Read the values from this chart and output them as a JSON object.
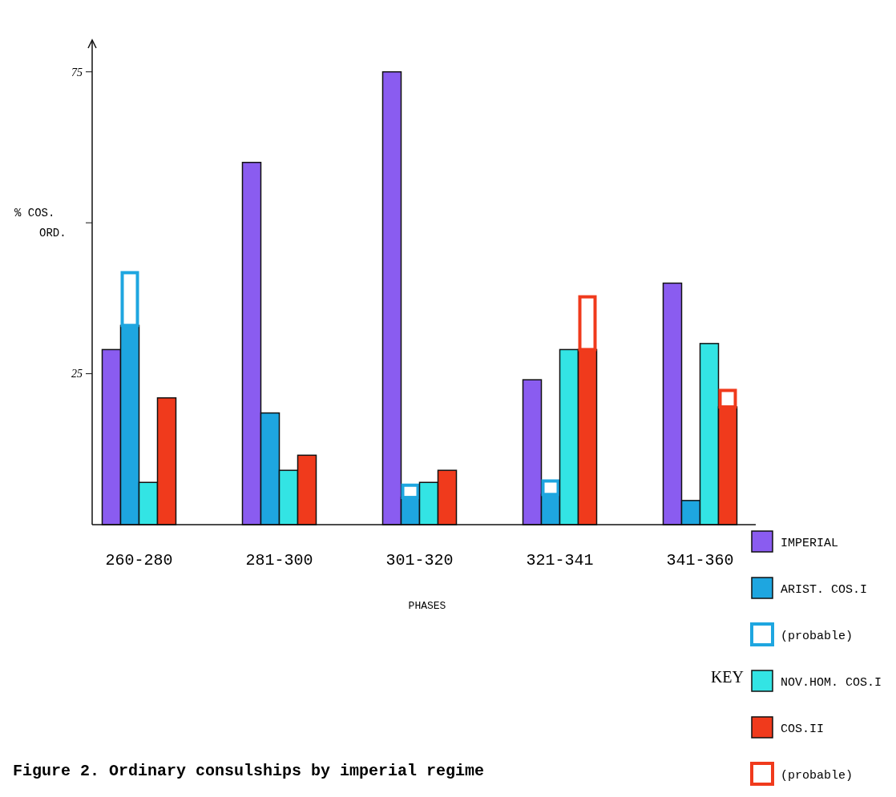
{
  "chart_data": {
    "type": "bar",
    "title": "Figure 2. Ordinary consulships by imperial regime",
    "xlabel": "PHASES",
    "ylabel": "% COS.\nORD.",
    "legend_title": "KEY",
    "categories": [
      "260-280",
      "281-300",
      "301-320",
      "321-341",
      "341-360"
    ],
    "series": [
      {
        "name": "IMPERIAL",
        "color": "#8a5cf0",
        "values": [
          29,
          60,
          75,
          24,
          40
        ]
      },
      {
        "name": "ARIST. COS.I",
        "color": "#1ea6e0",
        "values": [
          33,
          18.5,
          4.5,
          5,
          4
        ]
      },
      {
        "name": "(probable)",
        "color": "#ffffff",
        "base": [
          33,
          null,
          4.5,
          5,
          null
        ],
        "values": [
          9,
          null,
          2.3,
          2.5,
          null
        ]
      },
      {
        "name": "NOV.HOM. COS.I",
        "color": "#33e4e4",
        "values": [
          7,
          9,
          7,
          29,
          30
        ]
      },
      {
        "name": "COS.II",
        "color": "#f03a1c",
        "values": [
          21,
          11.5,
          9,
          29,
          19.5
        ]
      },
      {
        "name": "(probable)",
        "color": "#ffffff",
        "base": [
          null,
          null,
          null,
          29,
          19.5
        ],
        "values": [
          null,
          null,
          null,
          9,
          3
        ]
      }
    ],
    "ylim": [
      0,
      80
    ],
    "yticks": [
      25,
      {
        "value": 50,
        "label": null
      },
      75
    ],
    "legend": "bottom right"
  }
}
